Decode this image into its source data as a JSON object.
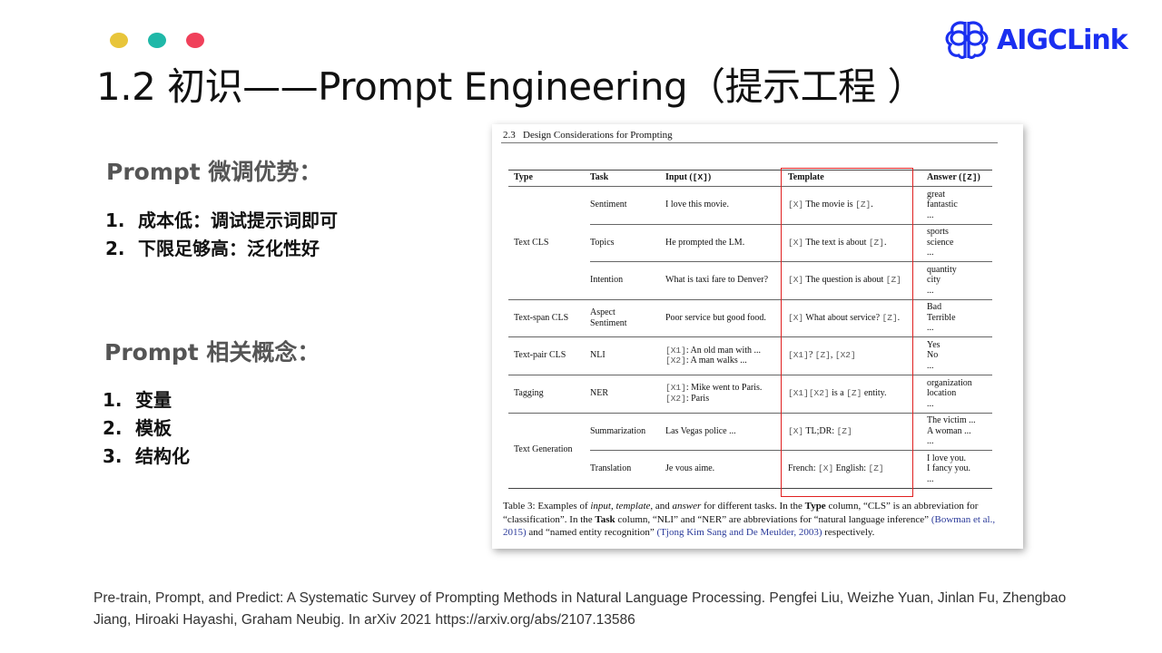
{
  "slide": {
    "dots": [
      "#e8c53a",
      "#1fb8a8",
      "#f0405a"
    ],
    "title": "1.2 初识——Prompt Engineering（提示工程 ）",
    "logo": {
      "text": "AIGCLink",
      "color": "#1a2ff0",
      "icon": "brain-icon"
    },
    "section1": {
      "heading": "Prompt 微调优势：",
      "items": [
        {
          "n": "1.",
          "text": "成本低：调试提示词即可"
        },
        {
          "n": "2.",
          "text": "下限足够高：泛化性好"
        }
      ]
    },
    "section2": {
      "heading": "Prompt 相关概念：",
      "items": [
        {
          "n": "1.",
          "text": "变量"
        },
        {
          "n": "2.",
          "text": "模板"
        },
        {
          "n": "3.",
          "text": "结构化"
        }
      ]
    },
    "reference": "Pre-train, Prompt, and Predict: A Systematic Survey of Prompting Methods in Natural Language Processing. Pengfei Liu, Weizhe Yuan, Jinlan Fu, Zhengbao Jiang, Hiroaki Hayashi, Graham Neubig. In arXiv 2021 https://arxiv.org/abs/2107.13586"
  },
  "paper": {
    "section": "2.3   Design Considerations for Prompting",
    "headers": {
      "type": "Type",
      "task": "Task",
      "input": "Input ([X])",
      "template": "Template",
      "answer": "Answer ([Z])"
    },
    "types": [
      "Text CLS",
      "Text-span CLS",
      "Text-pair CLS",
      "Tagging",
      "Text Generation"
    ],
    "rows": [
      {
        "task": "Sentiment",
        "input": "I love this movie.",
        "template": "[X] The movie is [Z].",
        "answer": "great\nfantastic\n..."
      },
      {
        "task": "Topics",
        "input": "He prompted the LM.",
        "template": "[X] The text is about [Z].",
        "answer": "sports\nscience\n..."
      },
      {
        "task": "Intention",
        "input": "What is taxi fare to Denver?",
        "template": "[X] The question is about [Z]",
        "answer": "quantity\ncity\n..."
      },
      {
        "task": "Aspect\nSentiment",
        "input": "Poor service but good food.",
        "template": "[X] What about service? [Z].",
        "answer": "Bad\nTerrible\n..."
      },
      {
        "task": "NLI",
        "input": "[X1]: An old man with ...\n[X2]: A man walks ...",
        "template": "[X1]? [Z], [X2]",
        "answer": "Yes\nNo\n..."
      },
      {
        "task": "NER",
        "input": "[X1]: Mike went to Paris.\n[X2]: Paris",
        "template": "[X1][X2] is a [Z] entity.",
        "answer": "organization\nlocation\n..."
      },
      {
        "task": "Summarization",
        "input": "Las Vegas police ...",
        "template": "[X] TL;DR: [Z]",
        "answer": "The victim ...\nA woman ...\n..."
      },
      {
        "task": "Translation",
        "input": "Je vous aime.",
        "template": "French: [X] English: [Z]",
        "answer": "I love you.\nI fancy you.\n..."
      }
    ],
    "caption": "Table 3: Examples of input, template, and answer for different tasks. In the Type column, “CLS” is an abbreviation for “classification”. In the Task column, “NLI” and “NER” are abbreviations for “natural language inference” (Bowman et al., 2015) and “named entity recognition” (Tjong Kim Sang and De Meulder, 2003) respectively.",
    "highlight_color": "#e02020"
  }
}
